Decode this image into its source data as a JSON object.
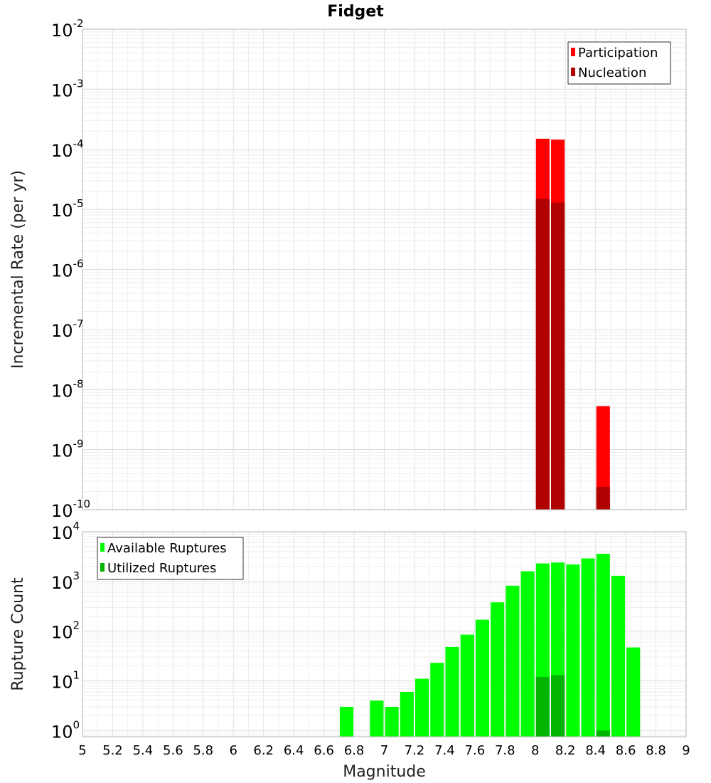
{
  "title": "Fidget",
  "chart_data": [
    {
      "type": "bar",
      "ylabel": "Incremental Rate (per yr)",
      "xlabel": "",
      "xlim": [
        5,
        9
      ],
      "ylim": [
        1e-10,
        0.01
      ],
      "y_scale": "log",
      "y_ticks_exp": [
        -10,
        -9,
        -8,
        -7,
        -6,
        -5,
        -4,
        -3,
        -2
      ],
      "grid": true,
      "legend_position": "top-right",
      "series": [
        {
          "name": "Participation",
          "color": "#ff0000",
          "x": [
            8.05,
            8.15,
            8.45
          ],
          "values": [
            0.00015,
            0.000145,
            5.3e-09
          ]
        },
        {
          "name": "Nucleation",
          "color": "#b00000",
          "x": [
            8.05,
            8.15,
            8.45
          ],
          "values": [
            1.5e-05,
            1.3e-05,
            2.4e-10
          ]
        }
      ]
    },
    {
      "type": "bar",
      "ylabel": "Rupture Count",
      "xlabel": "Magnitude",
      "xlim": [
        5,
        9
      ],
      "ylim": [
        0.75,
        10000
      ],
      "y_scale": "log",
      "y_ticks_exp": [
        0,
        1,
        2,
        3,
        4
      ],
      "x_ticks": [
        "5",
        "5.2",
        "5.4",
        "5.6",
        "5.8",
        "6",
        "6.2",
        "6.4",
        "6.6",
        "6.8",
        "7",
        "7.2",
        "7.4",
        "7.6",
        "7.8",
        "8",
        "8.2",
        "8.4",
        "8.6",
        "8.8",
        "9"
      ],
      "grid": true,
      "legend_position": "top-left",
      "series": [
        {
          "name": "Available Ruptures",
          "color": "#00ff00",
          "x": [
            6.75,
            6.95,
            7.05,
            7.15,
            7.25,
            7.35,
            7.45,
            7.55,
            7.65,
            7.75,
            7.85,
            7.95,
            8.05,
            8.15,
            8.25,
            8.35,
            8.45,
            8.55,
            8.65
          ],
          "values": [
            3,
            4,
            3,
            6,
            11,
            23,
            48,
            85,
            170,
            380,
            820,
            1600,
            2300,
            2400,
            2200,
            2900,
            3600,
            1300,
            47
          ]
        },
        {
          "name": "Utilized Ruptures",
          "color": "#00b400",
          "x": [
            8.05,
            8.15,
            8.45
          ],
          "values": [
            12,
            13,
            1
          ]
        }
      ]
    }
  ]
}
